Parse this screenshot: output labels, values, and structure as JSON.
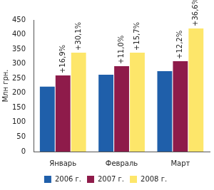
{
  "chart_data": {
    "type": "bar",
    "y_label": "Млн грн.",
    "categories": [
      "Январь",
      "Февраль",
      "Март"
    ],
    "series": [
      {
        "name": "2006 г.",
        "color": "#1f5faa",
        "values": [
          222,
          263,
          275
        ]
      },
      {
        "name": "2007 г.",
        "color": "#8e1b4a",
        "values": [
          260,
          292,
          309
        ],
        "annotations": [
          "+16,9%",
          "+11,0%",
          "+12,2%"
        ]
      },
      {
        "name": "2008 г.",
        "color": "#fde66a",
        "values": [
          338,
          338,
          421
        ],
        "annotations": [
          "+30,1%",
          "+15,7%",
          "+36,6%"
        ]
      }
    ],
    "ylim": [
      0,
      450
    ],
    "yticks": [
      0,
      50,
      100,
      150,
      200,
      250,
      300,
      350,
      400,
      450
    ],
    "grid": false,
    "legend": "bottom"
  }
}
